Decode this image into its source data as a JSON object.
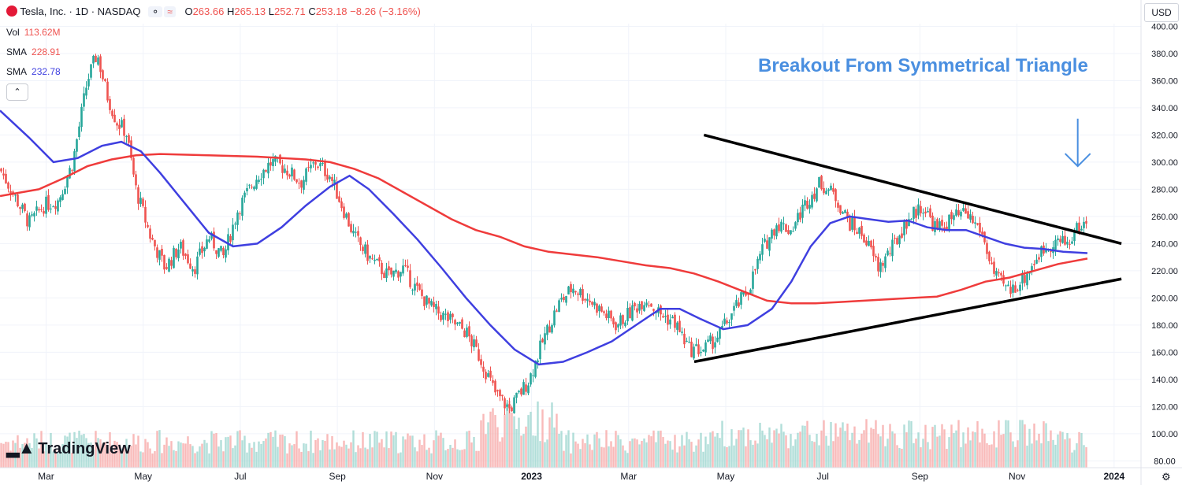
{
  "header": {
    "symbol": "Tesla, Inc. · 1D · NASDAQ",
    "open_label": "O",
    "open": "263.66",
    "high_label": "H",
    "high": "265.13",
    "low_label": "L",
    "low": "252.71",
    "close_label": "C",
    "close": "253.18",
    "change": "−8.26 (−3.16%)"
  },
  "indicators": [
    {
      "label": "Vol",
      "value": "113.62M",
      "color": "#ef5350"
    },
    {
      "label": "SMA",
      "value": "228.91",
      "color": "#ef5350"
    },
    {
      "label": "SMA",
      "value": "232.78",
      "color": "#3f3fe0"
    }
  ],
  "currency": "USD",
  "brand": "TradingView",
  "chart_data": {
    "type": "candlestick",
    "title": "Tesla, Inc. · 1D · NASDAQ",
    "annotation": "Breakout From Symmetrical Triangle",
    "y_axis": {
      "ticks": [
        80,
        100,
        120,
        140,
        160,
        180,
        200,
        220,
        240,
        260,
        280,
        300,
        320,
        340,
        360,
        380,
        400
      ],
      "range": [
        75,
        402
      ]
    },
    "x_axis": {
      "labels": [
        "Mar",
        "May",
        "Jul",
        "Sep",
        "Nov",
        "2023",
        "Mar",
        "May",
        "Jul",
        "Sep",
        "Nov",
        "2024"
      ],
      "label_month_index": [
        0,
        2,
        4,
        6,
        8,
        10,
        12,
        14,
        16,
        18,
        20,
        22
      ],
      "range_months": [
        -0.3,
        22.1
      ]
    },
    "colors": {
      "up": "#26a69a",
      "down": "#ef5350",
      "sma50": "#3f3fe0",
      "sma200": "#ef3b3b",
      "trend": "#000000",
      "annotation": "#4a8fe0"
    },
    "price_path": [
      [
        -0.3,
        295
      ],
      [
        0.0,
        275
      ],
      [
        0.3,
        255
      ],
      [
        0.6,
        268
      ],
      [
        0.9,
        272
      ],
      [
        1.2,
        300
      ],
      [
        1.5,
        360
      ],
      [
        1.7,
        380
      ],
      [
        1.9,
        350
      ],
      [
        2.1,
        330
      ],
      [
        2.3,
        322
      ],
      [
        2.5,
        280
      ],
      [
        2.8,
        245
      ],
      [
        3.1,
        222
      ],
      [
        3.4,
        238
      ],
      [
        3.7,
        222
      ],
      [
        4.0,
        245
      ],
      [
        4.3,
        230
      ],
      [
        4.6,
        265
      ],
      [
        5.0,
        290
      ],
      [
        5.3,
        300
      ],
      [
        5.6,
        295
      ],
      [
        5.9,
        285
      ],
      [
        6.2,
        300
      ],
      [
        6.5,
        290
      ],
      [
        6.8,
        263
      ],
      [
        7.0,
        245
      ],
      [
        7.3,
        230
      ],
      [
        7.7,
        216
      ],
      [
        8.0,
        222
      ],
      [
        8.3,
        205
      ],
      [
        8.6,
        192
      ],
      [
        8.9,
        185
      ],
      [
        9.3,
        175
      ],
      [
        9.6,
        155
      ],
      [
        9.9,
        130
      ],
      [
        10.2,
        118
      ],
      [
        10.6,
        140
      ],
      [
        10.9,
        170
      ],
      [
        11.2,
        195
      ],
      [
        11.5,
        208
      ],
      [
        11.8,
        200
      ],
      [
        12.1,
        190
      ],
      [
        12.4,
        180
      ],
      [
        12.7,
        190
      ],
      [
        13.0,
        200
      ],
      [
        13.3,
        188
      ],
      [
        13.6,
        182
      ],
      [
        13.9,
        162
      ],
      [
        14.2,
        162
      ],
      [
        14.5,
        172
      ],
      [
        14.8,
        190
      ],
      [
        15.1,
        205
      ],
      [
        15.4,
        235
      ],
      [
        15.7,
        255
      ],
      [
        16.0,
        250
      ],
      [
        16.3,
        270
      ],
      [
        16.6,
        285
      ],
      [
        16.9,
        275
      ],
      [
        17.2,
        255
      ],
      [
        17.5,
        245
      ],
      [
        17.8,
        222
      ],
      [
        18.1,
        238
      ],
      [
        18.4,
        258
      ],
      [
        18.7,
        268
      ],
      [
        19.0,
        250
      ],
      [
        19.3,
        258
      ],
      [
        19.6,
        262
      ],
      [
        19.9,
        250
      ],
      [
        20.2,
        215
      ],
      [
        20.5,
        205
      ],
      [
        20.8,
        215
      ],
      [
        21.1,
        232
      ],
      [
        21.4,
        242
      ],
      [
        21.7,
        240
      ],
      [
        21.9,
        252
      ],
      [
        22.1,
        255
      ]
    ],
    "sma50": [
      [
        -0.3,
        338
      ],
      [
        0.3,
        318
      ],
      [
        0.8,
        300
      ],
      [
        1.3,
        303
      ],
      [
        1.8,
        312
      ],
      [
        2.2,
        315
      ],
      [
        2.6,
        308
      ],
      [
        3.0,
        292
      ],
      [
        3.5,
        270
      ],
      [
        4.0,
        248
      ],
      [
        4.5,
        238
      ],
      [
        5.0,
        240
      ],
      [
        5.5,
        252
      ],
      [
        6.0,
        268
      ],
      [
        6.5,
        282
      ],
      [
        6.9,
        290
      ],
      [
        7.3,
        280
      ],
      [
        7.8,
        262
      ],
      [
        8.3,
        243
      ],
      [
        8.8,
        222
      ],
      [
        9.3,
        200
      ],
      [
        9.8,
        180
      ],
      [
        10.3,
        162
      ],
      [
        10.8,
        151
      ],
      [
        11.3,
        153
      ],
      [
        11.8,
        160
      ],
      [
        12.3,
        168
      ],
      [
        12.8,
        180
      ],
      [
        13.3,
        192
      ],
      [
        13.7,
        192
      ],
      [
        14.1,
        185
      ],
      [
        14.6,
        177
      ],
      [
        15.1,
        180
      ],
      [
        15.6,
        192
      ],
      [
        16.0,
        212
      ],
      [
        16.4,
        238
      ],
      [
        16.8,
        255
      ],
      [
        17.2,
        260
      ],
      [
        17.6,
        258
      ],
      [
        18.0,
        256
      ],
      [
        18.4,
        257
      ],
      [
        18.8,
        252
      ],
      [
        19.2,
        250
      ],
      [
        19.6,
        250
      ],
      [
        20.0,
        245
      ],
      [
        20.4,
        240
      ],
      [
        20.8,
        237
      ],
      [
        21.2,
        236
      ],
      [
        21.6,
        234
      ],
      [
        22.1,
        233
      ]
    ],
    "sma200": [
      [
        -0.3,
        275
      ],
      [
        0.5,
        280
      ],
      [
        1.0,
        288
      ],
      [
        1.5,
        297
      ],
      [
        2.0,
        302
      ],
      [
        2.5,
        305
      ],
      [
        3.0,
        306
      ],
      [
        4.0,
        305
      ],
      [
        5.0,
        304
      ],
      [
        6.0,
        302
      ],
      [
        6.5,
        300
      ],
      [
        7.0,
        295
      ],
      [
        7.5,
        288
      ],
      [
        8.0,
        278
      ],
      [
        8.5,
        268
      ],
      [
        9.0,
        258
      ],
      [
        9.5,
        250
      ],
      [
        10.0,
        245
      ],
      [
        10.5,
        238
      ],
      [
        11.0,
        234
      ],
      [
        11.5,
        232
      ],
      [
        12.0,
        230
      ],
      [
        12.5,
        227
      ],
      [
        13.0,
        224
      ],
      [
        13.5,
        222
      ],
      [
        14.0,
        218
      ],
      [
        14.5,
        212
      ],
      [
        15.0,
        205
      ],
      [
        15.5,
        198
      ],
      [
        16.0,
        196
      ],
      [
        16.5,
        196
      ],
      [
        17.0,
        197
      ],
      [
        17.5,
        198
      ],
      [
        18.0,
        199
      ],
      [
        18.5,
        200
      ],
      [
        19.0,
        201
      ],
      [
        19.5,
        206
      ],
      [
        20.0,
        212
      ],
      [
        20.5,
        215
      ],
      [
        21.0,
        220
      ],
      [
        21.5,
        225
      ],
      [
        22.1,
        229
      ]
    ],
    "trendlines": [
      {
        "name": "upper",
        "from": [
          14.2,
          320
        ],
        "to": [
          22.8,
          240
        ]
      },
      {
        "name": "lower",
        "from": [
          14.0,
          153
        ],
        "to": [
          22.8,
          214
        ]
      }
    ],
    "volume_base_label": "80.00",
    "arrow": {
      "at_month": 21.9,
      "from_price": 332,
      "to_price": 297
    }
  }
}
